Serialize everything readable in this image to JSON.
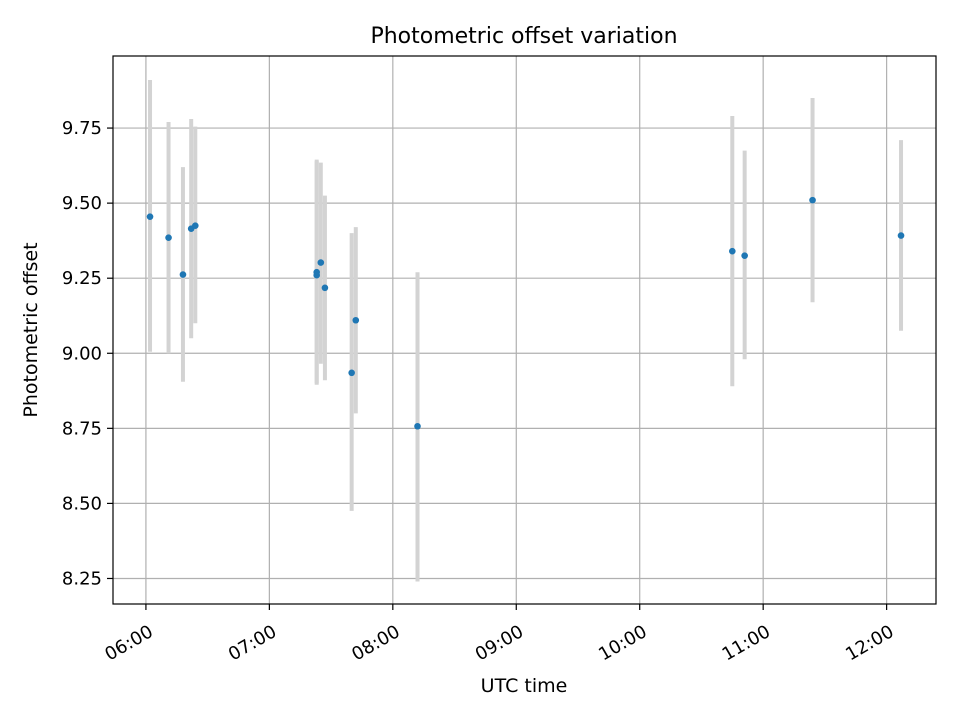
{
  "chart_data": {
    "type": "scatter",
    "title": "Photometric offset variation",
    "xlabel": "UTC time",
    "ylabel": "Photometric offset",
    "x_axis_type": "time",
    "xlim": [
      "05:44",
      "12:24"
    ],
    "ylim": [
      8.165,
      9.99
    ],
    "x_ticks": [
      "06:00",
      "07:00",
      "08:00",
      "09:00",
      "10:00",
      "11:00",
      "12:00"
    ],
    "y_ticks": [
      "8.25",
      "8.50",
      "8.75",
      "9.00",
      "9.25",
      "9.50",
      "9.75"
    ],
    "grid": true,
    "legend": "none",
    "colors": {
      "point": "#1f77b4",
      "errorbar": "#d3d3d3",
      "grid": "#b0b0b0"
    },
    "points": [
      {
        "time": "06:02",
        "y": 9.455,
        "err_low": 9.005,
        "err_high": 9.91
      },
      {
        "time": "06:11",
        "y": 9.385,
        "err_low": 9.0,
        "err_high": 9.77
      },
      {
        "time": "06:18",
        "y": 9.262,
        "err_low": 8.905,
        "err_high": 9.62
      },
      {
        "time": "06:22",
        "y": 9.415,
        "err_low": 9.05,
        "err_high": 9.78
      },
      {
        "time": "06:24",
        "y": 9.425,
        "err_low": 9.1,
        "err_high": 9.755
      },
      {
        "time": "07:23",
        "y": 9.26,
        "err_low": 8.895,
        "err_high": 9.645
      },
      {
        "time": "07:23",
        "y": 9.27,
        "err_low": 8.9,
        "err_high": 9.64
      },
      {
        "time": "07:25",
        "y": 9.302,
        "err_low": 8.965,
        "err_high": 9.635
      },
      {
        "time": "07:27",
        "y": 9.218,
        "err_low": 8.91,
        "err_high": 9.525
      },
      {
        "time": "07:40",
        "y": 8.935,
        "err_low": 8.475,
        "err_high": 9.4
      },
      {
        "time": "07:42",
        "y": 9.11,
        "err_low": 8.8,
        "err_high": 9.42
      },
      {
        "time": "08:12",
        "y": 8.757,
        "err_low": 8.24,
        "err_high": 9.27
      },
      {
        "time": "10:45",
        "y": 9.34,
        "err_low": 8.89,
        "err_high": 9.79
      },
      {
        "time": "10:51",
        "y": 9.325,
        "err_low": 8.98,
        "err_high": 9.675
      },
      {
        "time": "11:24",
        "y": 9.51,
        "err_low": 9.17,
        "err_high": 9.85
      },
      {
        "time": "12:07",
        "y": 9.392,
        "err_low": 9.075,
        "err_high": 9.71
      }
    ]
  }
}
